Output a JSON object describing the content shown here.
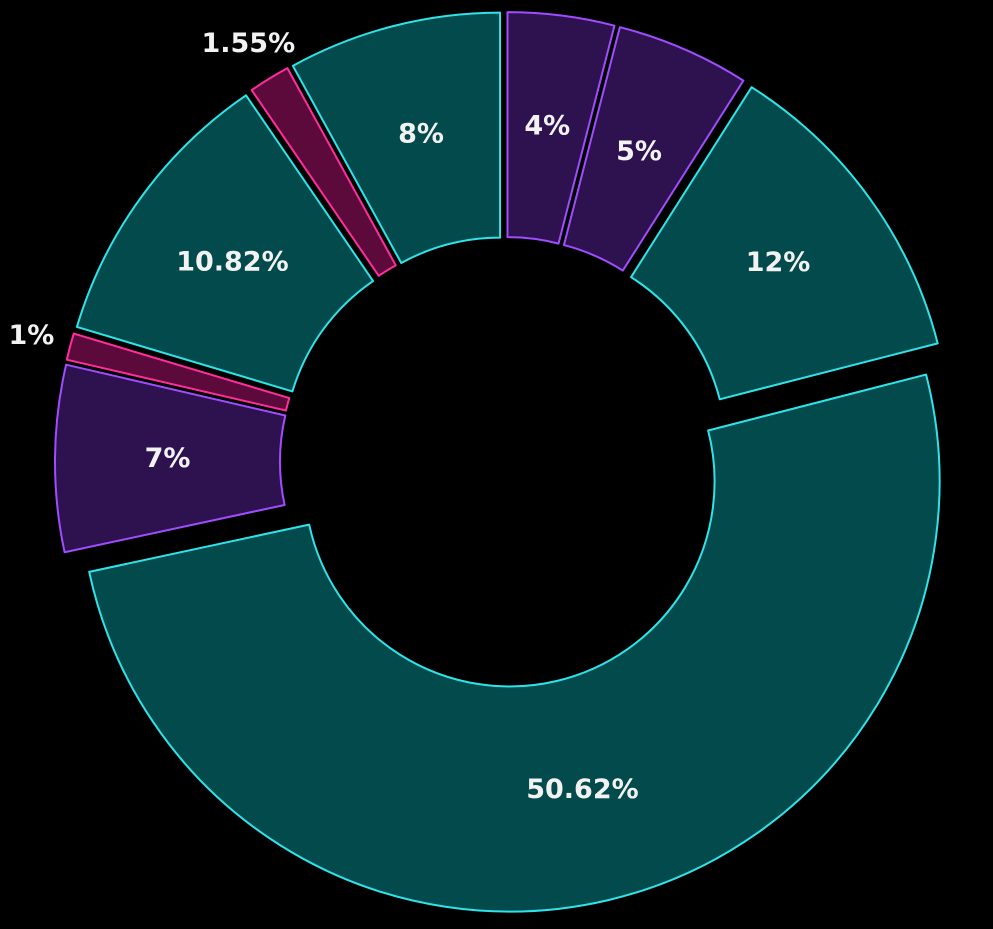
{
  "chart_data": {
    "type": "pie",
    "donut": true,
    "values": [
      4,
      5,
      12,
      50.62,
      7,
      1,
      10.82,
      1.55,
      8
    ],
    "value_labels": [
      "4%",
      "5%",
      "12%",
      "50.62%",
      "7%",
      "1%",
      "10.82%",
      "1.55%",
      "8%"
    ],
    "colors": [
      "#2e1250",
      "#2e1250",
      "#024a4c",
      "#024a4c",
      "#2e1250",
      "#5c0a3c",
      "#024a4c",
      "#5c0a3c",
      "#024a4c"
    ],
    "edge_colors": [
      "#a04cff",
      "#a04cff",
      "#30e3e8",
      "#30e3e8",
      "#a04cff",
      "#ff2e9a",
      "#30e3e8",
      "#ff2e9a",
      "#30e3e8"
    ]
  }
}
